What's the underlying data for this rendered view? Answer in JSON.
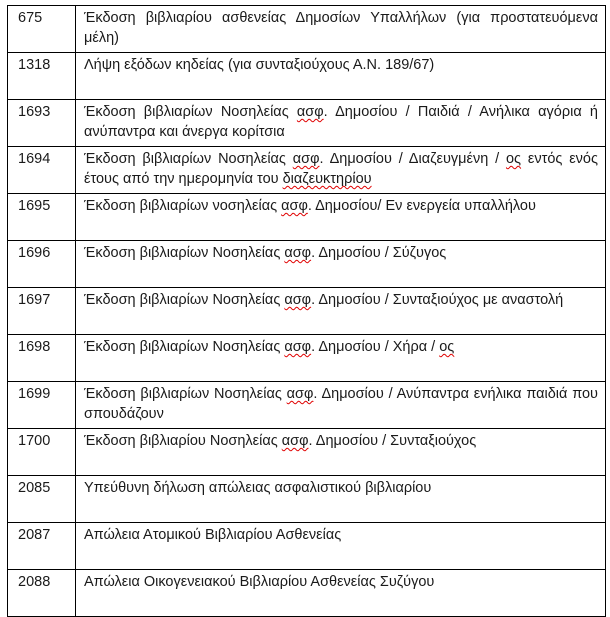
{
  "colors": {
    "text": "#1a1a1a",
    "border": "#000000",
    "misspell_underline": "#e00000",
    "page_background": "#ffffff"
  },
  "table": {
    "column_names": [
      "service-code",
      "service-description"
    ],
    "rows": [
      {
        "code": "675",
        "segments": [
          {
            "text": "Έκδοση βιβλιαρίου ασθενείας Δημοσίων Υπαλλήλων (για προστατευόμενα μέλη)"
          }
        ]
      },
      {
        "code": "1318",
        "segments": [
          {
            "text": "Λήψη εξόδων κηδείας (για συνταξιούχους Α.Ν. 189/67)"
          }
        ]
      },
      {
        "code": "1693",
        "segments": [
          {
            "text": "Έκδοση βιβλιαρίων Νοσηλείας "
          },
          {
            "text": "ασφ",
            "misspell": true
          },
          {
            "text": ". Δημοσίου / Παιδιά / Ανήλικα αγόρια ή ανύπαντρα και άνεργα κορίτσια"
          }
        ]
      },
      {
        "code": "1694",
        "segments": [
          {
            "text": "Έκδοση βιβλιαρίων Νοσηλείας "
          },
          {
            "text": "ασφ",
            "misspell": true
          },
          {
            "text": ". Δημοσίου / Διαζευγμένη / "
          },
          {
            "text": "ος",
            "misspell": true
          },
          {
            "text": " εντός ενός έτους από την ημερομηνία του "
          },
          {
            "text": "διαζευκτηρίου",
            "misspell": true
          }
        ]
      },
      {
        "code": "1695",
        "segments": [
          {
            "text": "Έκδοση βιβλιαρίων νοσηλείας "
          },
          {
            "text": "ασφ",
            "misspell": true
          },
          {
            "text": ". Δημοσίου/ Εν ενεργεία υπαλλήλου"
          }
        ]
      },
      {
        "code": "1696",
        "segments": [
          {
            "text": "Έκδοση βιβλιαρίων Νοσηλείας "
          },
          {
            "text": "ασφ",
            "misspell": true
          },
          {
            "text": ". Δημοσίου / Σύζυγος"
          }
        ]
      },
      {
        "code": "1697",
        "segments": [
          {
            "text": "Έκδοση βιβλιαρίων Νοσηλείας "
          },
          {
            "text": "ασφ",
            "misspell": true
          },
          {
            "text": ". Δημοσίου / Συνταξιούχος με αναστολή"
          }
        ]
      },
      {
        "code": "1698",
        "segments": [
          {
            "text": "Έκδοση βιβλιαρίων Νοσηλείας "
          },
          {
            "text": "ασφ",
            "misspell": true
          },
          {
            "text": ". Δημοσίου / Χήρα / "
          },
          {
            "text": "ος",
            "misspell": true
          }
        ]
      },
      {
        "code": "1699",
        "segments": [
          {
            "text": "Έκδοση βιβλιαρίων Νοσηλείας "
          },
          {
            "text": "ασφ",
            "misspell": true
          },
          {
            "text": ". Δημοσίου / Ανύπαντρα ενήλικα παιδιά που σπουδάζουν"
          }
        ]
      },
      {
        "code": "1700",
        "segments": [
          {
            "text": "Έκδοση βιβλιαρίου Νοσηλείας "
          },
          {
            "text": "ασφ",
            "misspell": true
          },
          {
            "text": ". Δημοσίου / Συνταξιούχος"
          }
        ]
      },
      {
        "code": "2085",
        "segments": [
          {
            "text": "Υπεύθυνη δήλωση απώλειας ασφαλιστικού βιβλιαρίου"
          }
        ]
      },
      {
        "code": "2087",
        "segments": [
          {
            "text": "Απώλεια Ατομικού Βιβλιαρίου Ασθενείας"
          }
        ]
      },
      {
        "code": "2088",
        "segments": [
          {
            "text": "Απώλεια Οικογενειακού Βιβλιαρίου Ασθενείας Συζύγου"
          }
        ]
      }
    ]
  }
}
